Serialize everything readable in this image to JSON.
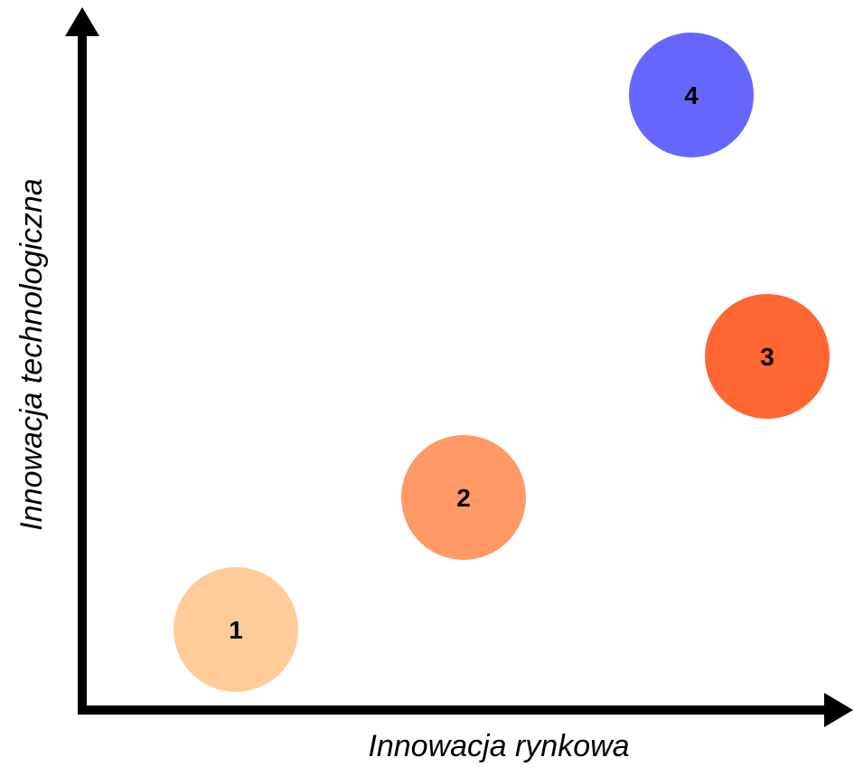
{
  "diagram": {
    "x_axis_label": "Innowacja rynkowa",
    "y_axis_label": "Innowacja technologiczna",
    "bubbles": [
      {
        "label": "1",
        "color": "#FFCC99"
      },
      {
        "label": "2",
        "color": "#FF9966"
      },
      {
        "label": "3",
        "color": "#FF6633"
      },
      {
        "label": "4",
        "color": "#6666FF"
      }
    ]
  }
}
